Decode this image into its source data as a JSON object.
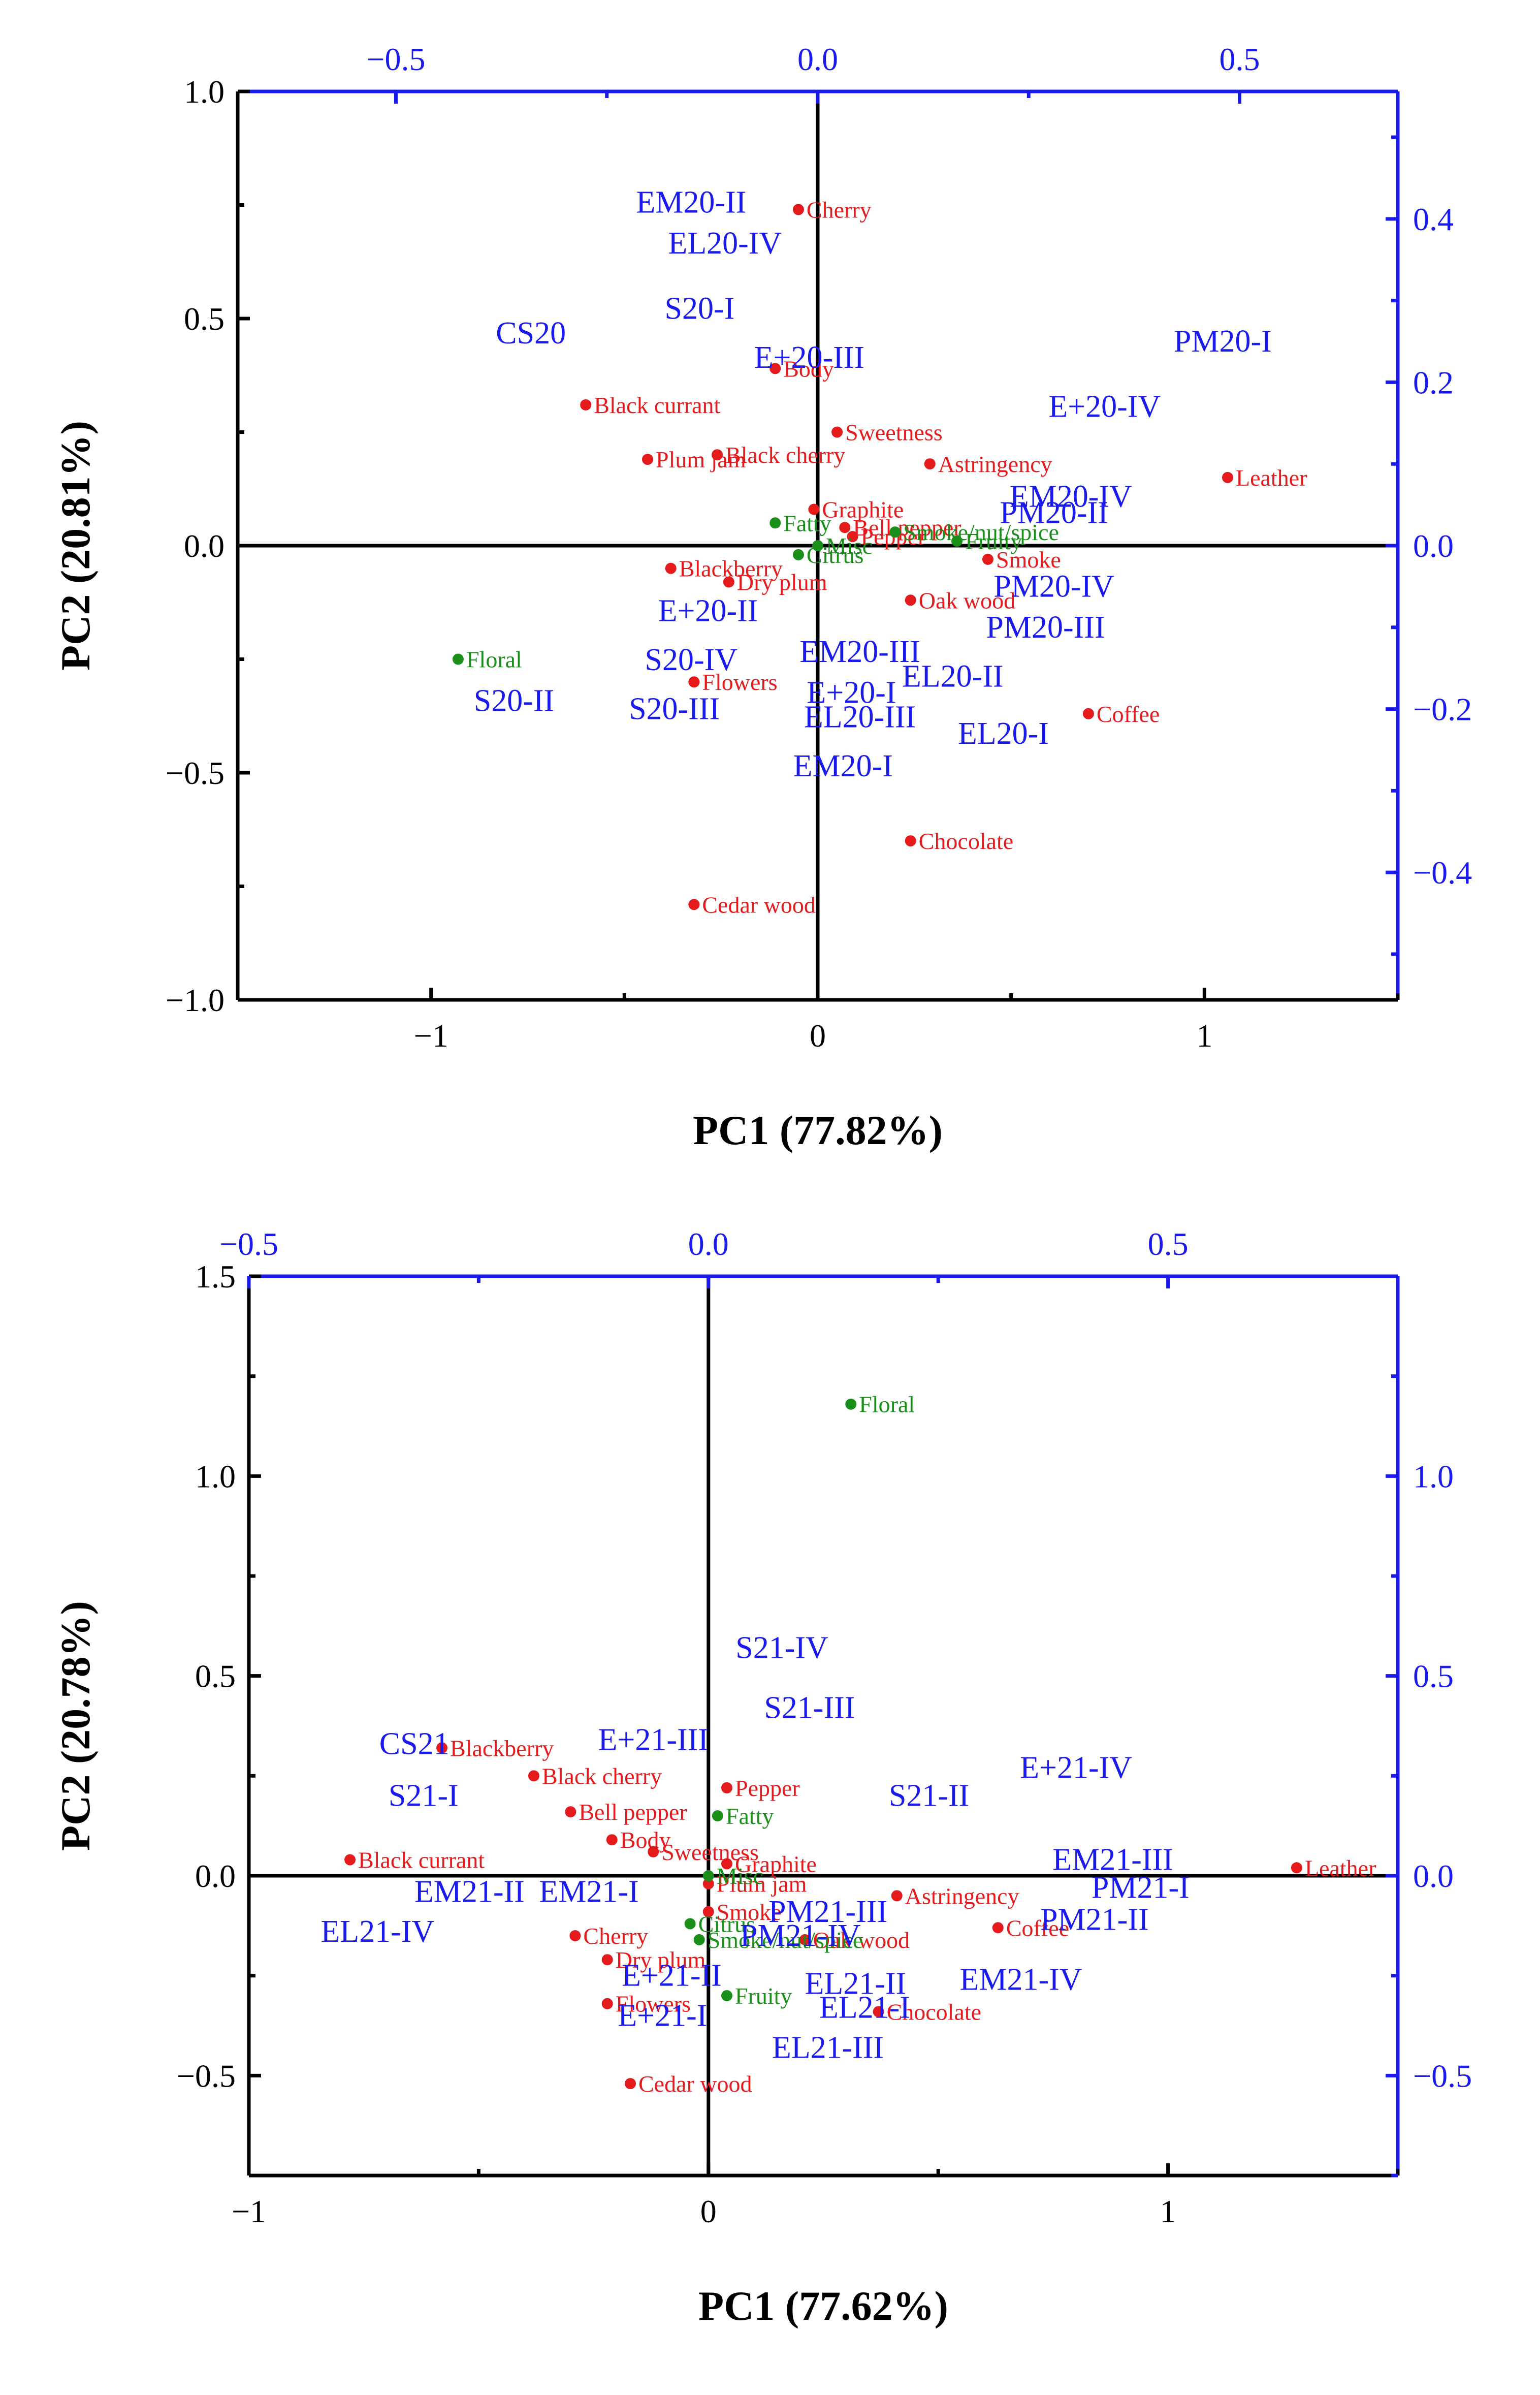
{
  "colors": {
    "axis": "#000000",
    "secondary_axis": "#1a1aee",
    "sensory": "#e41a1c",
    "aroma_class": "#1a8f1a",
    "score": "#1a1aee"
  },
  "chart_data": [
    {
      "type": "scatter",
      "title": "",
      "xlabel": "PC1 (77.82%)",
      "ylabel": "PC2 (20.81%)",
      "xlim": [
        -1.5,
        1.5
      ],
      "ylim": [
        -1.0,
        1.0
      ],
      "xticks": [
        -1,
        0,
        1
      ],
      "xtick_labels": [
        "−1",
        "0",
        "1"
      ],
      "yticks": [
        1.0,
        0.5,
        0.0,
        -0.5,
        -1.0
      ],
      "ytick_labels": [
        "1.0",
        "0.5",
        "0.0",
        "−0.5",
        "−1.0"
      ],
      "top_axis": {
        "lim": [
          -0.6875,
          0.6875
        ],
        "ticks": [
          -0.5,
          0.0,
          0.5
        ],
        "tick_labels": [
          "−0.5",
          "0.0",
          "0.5"
        ]
      },
      "right_axis": {
        "lim": [
          -0.556,
          0.556
        ],
        "ticks": [
          0.4,
          0.2,
          0.0,
          -0.2,
          -0.4
        ],
        "tick_labels": [
          "0.4",
          "0.2",
          "0.0",
          "−0.2",
          "−0.4"
        ]
      },
      "loadings_sensory": [
        {
          "label": "Cherry",
          "x": -0.05,
          "y": 0.74
        },
        {
          "label": "Body",
          "x": -0.11,
          "y": 0.39
        },
        {
          "label": "Black currant",
          "x": -0.6,
          "y": 0.31
        },
        {
          "label": "Sweetness",
          "x": 0.05,
          "y": 0.25
        },
        {
          "label": "Plum jam",
          "x": -0.44,
          "y": 0.19
        },
        {
          "label": "Black cherry",
          "x": -0.26,
          "y": 0.2
        },
        {
          "label": "Astringency",
          "x": 0.29,
          "y": 0.18
        },
        {
          "label": "Leather",
          "x": 1.06,
          "y": 0.15
        },
        {
          "label": "Graphite",
          "x": -0.01,
          "y": 0.08
        },
        {
          "label": "Bell pepper",
          "x": 0.07,
          "y": 0.04
        },
        {
          "label": "Pepper",
          "x": 0.09,
          "y": 0.02
        },
        {
          "label": "Blackberry",
          "x": -0.38,
          "y": -0.05
        },
        {
          "label": "Dry plum",
          "x": -0.23,
          "y": -0.08
        },
        {
          "label": "Smoke",
          "x": 0.44,
          "y": -0.03
        },
        {
          "label": "Oak wood",
          "x": 0.24,
          "y": -0.12
        },
        {
          "label": "Flowers",
          "x": -0.32,
          "y": -0.3
        },
        {
          "label": "Coffee",
          "x": 0.7,
          "y": -0.37
        },
        {
          "label": "Chocolate",
          "x": 0.24,
          "y": -0.65
        },
        {
          "label": "Cedar wood",
          "x": -0.32,
          "y": -0.79
        }
      ],
      "loadings_aroma": [
        {
          "label": "Fatty",
          "x": -0.11,
          "y": 0.05
        },
        {
          "label": "Citrus",
          "x": -0.05,
          "y": -0.02
        },
        {
          "label": "Misc",
          "x": 0.0,
          "y": 0.0
        },
        {
          "label": "Smoke/nut/spice",
          "x": 0.2,
          "y": 0.03
        },
        {
          "label": "Fruity",
          "x": 0.36,
          "y": 0.01
        },
        {
          "label": "Floral",
          "x": -0.93,
          "y": -0.25
        }
      ],
      "scores": [
        {
          "label": "EM20-II",
          "x": -0.15,
          "y": 0.42
        },
        {
          "label": "EL20-IV",
          "x": -0.11,
          "y": 0.37
        },
        {
          "label": "CS20",
          "x": -0.34,
          "y": 0.26
        },
        {
          "label": "S20-I",
          "x": -0.14,
          "y": 0.29
        },
        {
          "label": "E+20-III",
          "x": -0.01,
          "y": 0.23
        },
        {
          "label": "PM20-I",
          "x": 0.48,
          "y": 0.25
        },
        {
          "label": "E+20-IV",
          "x": 0.34,
          "y": 0.17
        },
        {
          "label": "EM20-IV",
          "x": 0.3,
          "y": 0.06
        },
        {
          "label": "PM20-II",
          "x": 0.28,
          "y": 0.04
        },
        {
          "label": "PM20-IV",
          "x": 0.28,
          "y": -0.05
        },
        {
          "label": "E+20-II",
          "x": -0.13,
          "y": -0.08
        },
        {
          "label": "PM20-III",
          "x": 0.27,
          "y": -0.1
        },
        {
          "label": "EM20-III",
          "x": 0.05,
          "y": -0.13
        },
        {
          "label": "S20-IV",
          "x": -0.15,
          "y": -0.14
        },
        {
          "label": "EL20-II",
          "x": 0.16,
          "y": -0.16
        },
        {
          "label": "E+20-I",
          "x": 0.04,
          "y": -0.18
        },
        {
          "label": "S20-II",
          "x": -0.36,
          "y": -0.19
        },
        {
          "label": "S20-III",
          "x": -0.17,
          "y": -0.2
        },
        {
          "label": "EL20-III",
          "x": 0.05,
          "y": -0.21
        },
        {
          "label": "EL20-I",
          "x": 0.22,
          "y": -0.23
        },
        {
          "label": "EM20-I",
          "x": 0.03,
          "y": -0.27
        }
      ]
    },
    {
      "type": "scatter",
      "title": "",
      "xlabel": "PC1 (77.62%)",
      "ylabel": "PC2 (20.78%)",
      "xlim": [
        -1.0,
        1.5
      ],
      "ylim": [
        -0.75,
        1.5
      ],
      "xticks": [
        -1,
        0,
        1
      ],
      "xtick_labels": [
        "−1",
        "0",
        "1"
      ],
      "yticks": [
        1.5,
        1.0,
        0.5,
        0.0,
        -0.5
      ],
      "ytick_labels": [
        "1.5",
        "1.0",
        "0.5",
        "0.0",
        "−0.5"
      ],
      "top_axis": {
        "lim": [
          -0.5,
          0.75
        ],
        "ticks": [
          -0.5,
          0.0,
          0.5
        ],
        "tick_labels": [
          "−0.5",
          "0.0",
          "0.5"
        ]
      },
      "right_axis": {
        "lim": [
          -0.75,
          1.5
        ],
        "ticks": [
          1.0,
          0.5,
          0.0,
          -0.5
        ],
        "tick_labels": [
          "1.0",
          "0.5",
          "0.0",
          "−0.5"
        ]
      },
      "loadings_sensory": [
        {
          "label": "Blackberry",
          "x": -0.58,
          "y": 0.32
        },
        {
          "label": "Black cherry",
          "x": -0.38,
          "y": 0.25
        },
        {
          "label": "Pepper",
          "x": 0.04,
          "y": 0.22
        },
        {
          "label": "Bell pepper",
          "x": -0.3,
          "y": 0.16
        },
        {
          "label": "Body",
          "x": -0.21,
          "y": 0.09
        },
        {
          "label": "Sweetness",
          "x": -0.12,
          "y": 0.06
        },
        {
          "label": "Graphite",
          "x": 0.04,
          "y": 0.03
        },
        {
          "label": "Black currant",
          "x": -0.78,
          "y": 0.04
        },
        {
          "label": "Leather",
          "x": 1.28,
          "y": 0.02
        },
        {
          "label": "Plum jam",
          "x": 0.0,
          "y": -0.02
        },
        {
          "label": "Astringency",
          "x": 0.41,
          "y": -0.05
        },
        {
          "label": "Smoke",
          "x": 0.0,
          "y": -0.09
        },
        {
          "label": "Coffee",
          "x": 0.63,
          "y": -0.13
        },
        {
          "label": "Oak wood",
          "x": 0.21,
          "y": -0.16
        },
        {
          "label": "Cherry",
          "x": -0.29,
          "y": -0.15
        },
        {
          "label": "Dry plum",
          "x": -0.22,
          "y": -0.21
        },
        {
          "label": "Flowers",
          "x": -0.22,
          "y": -0.32
        },
        {
          "label": "Chocolate",
          "x": 0.37,
          "y": -0.34
        },
        {
          "label": "Cedar wood",
          "x": -0.17,
          "y": -0.52
        }
      ],
      "loadings_aroma": [
        {
          "label": "Floral",
          "x": 0.31,
          "y": 1.18
        },
        {
          "label": "Fatty",
          "x": 0.02,
          "y": 0.15
        },
        {
          "label": "Misc",
          "x": 0.0,
          "y": 0.0
        },
        {
          "label": "Citrus",
          "x": -0.04,
          "y": -0.12
        },
        {
          "label": "Smoke/nut/spice",
          "x": -0.02,
          "y": -0.16
        },
        {
          "label": "Fruity",
          "x": 0.04,
          "y": -0.3
        }
      ],
      "scores": [
        {
          "label": "S21-IV",
          "x": 0.08,
          "y": 0.57
        },
        {
          "label": "S21-III",
          "x": 0.11,
          "y": 0.42
        },
        {
          "label": "CS21",
          "x": -0.32,
          "y": 0.33
        },
        {
          "label": "E+21-III",
          "x": -0.06,
          "y": 0.34
        },
        {
          "label": "E+21-IV",
          "x": 0.4,
          "y": 0.27
        },
        {
          "label": "S21-I",
          "x": -0.31,
          "y": 0.2
        },
        {
          "label": "S21-II",
          "x": 0.24,
          "y": 0.2
        },
        {
          "label": "EM21-III",
          "x": 0.44,
          "y": 0.04
        },
        {
          "label": "PM21-I",
          "x": 0.47,
          "y": -0.03
        },
        {
          "label": "EM21-II",
          "x": -0.26,
          "y": -0.04
        },
        {
          "label": "EM21-I",
          "x": -0.13,
          "y": -0.04
        },
        {
          "label": "PM21-III",
          "x": 0.13,
          "y": -0.09
        },
        {
          "label": "PM21-II",
          "x": 0.42,
          "y": -0.11
        },
        {
          "label": "EL21-IV",
          "x": -0.36,
          "y": -0.14
        },
        {
          "label": "PM21-IV",
          "x": 0.1,
          "y": -0.15
        },
        {
          "label": "E+21-II",
          "x": -0.04,
          "y": -0.25
        },
        {
          "label": "EL21-II",
          "x": 0.16,
          "y": -0.27
        },
        {
          "label": "EM21-IV",
          "x": 0.34,
          "y": -0.26
        },
        {
          "label": "E+21-I",
          "x": -0.05,
          "y": -0.35
        },
        {
          "label": "EL21-I",
          "x": 0.17,
          "y": -0.33
        },
        {
          "label": "EL21-III",
          "x": 0.13,
          "y": -0.43
        }
      ]
    }
  ]
}
